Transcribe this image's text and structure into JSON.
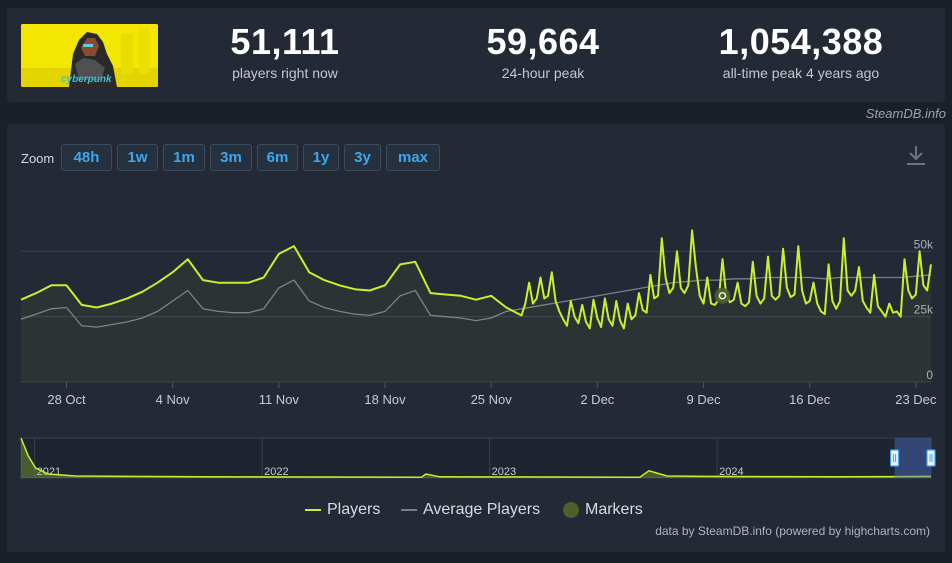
{
  "stats": [
    {
      "value": "51,111",
      "label": "players right now"
    },
    {
      "value": "59,664",
      "label": "24-hour peak"
    },
    {
      "value": "1,054,388",
      "label": "all-time peak 4 years ago"
    }
  ],
  "credit_top": "SteamDB.info",
  "zoom": {
    "label": "Zoom",
    "buttons": [
      "48h",
      "1w",
      "1m",
      "3m",
      "6m",
      "1y",
      "3y",
      "max"
    ]
  },
  "colors": {
    "players": "#c6f12c",
    "average": "#7b7f85",
    "markers": "#5a6b31",
    "accent": "#3aa7f0"
  },
  "icons": {
    "download": "download-icon",
    "game_image": "cyberpunk-2077-cover"
  },
  "chart_data": {
    "type": "line",
    "title": "",
    "xlabel": "",
    "ylabel": "",
    "x_ticks": [
      "28 Oct",
      "4 Nov",
      "11 Nov",
      "18 Nov",
      "25 Nov",
      "2 Dec",
      "9 Dec",
      "16 Dec",
      "23 Dec"
    ],
    "x_tick_days": [
      3,
      10,
      17,
      24,
      31,
      38,
      45,
      52,
      59
    ],
    "y_ticks": [
      0,
      25000,
      50000
    ],
    "y_tick_labels": [
      "0",
      "25k",
      "50k"
    ],
    "ylim": [
      0,
      75000
    ],
    "xlim_days": [
      0,
      60
    ],
    "grid": true,
    "legend_position": "bottom-center",
    "series": [
      {
        "name": "Players",
        "granularity": "daily until 22 Nov, then every 6 hours",
        "points": [
          [
            0,
            31500
          ],
          [
            1,
            34000
          ],
          [
            2,
            37000
          ],
          [
            3,
            37000
          ],
          [
            4,
            29500
          ],
          [
            5,
            28500
          ],
          [
            6,
            30000
          ],
          [
            7,
            32000
          ],
          [
            8,
            34500
          ],
          [
            9,
            38000
          ],
          [
            10,
            42000
          ],
          [
            11,
            47000
          ],
          [
            12,
            39000
          ],
          [
            13,
            38000
          ],
          [
            14,
            38000
          ],
          [
            15,
            38000
          ],
          [
            16,
            40000
          ],
          [
            17,
            49000
          ],
          [
            18,
            52000
          ],
          [
            19,
            42000
          ],
          [
            20,
            39000
          ],
          [
            21,
            37000
          ],
          [
            22,
            35500
          ],
          [
            23,
            35000
          ],
          [
            24,
            37000
          ],
          [
            25,
            45000
          ],
          [
            26,
            46000
          ],
          [
            27,
            34000
          ],
          [
            28,
            33500
          ],
          [
            29,
            33000
          ],
          [
            30,
            31500
          ],
          [
            31,
            33000
          ],
          [
            32,
            28500
          ],
          [
            33,
            25500
          ],
          [
            33.25,
            30000
          ],
          [
            33.5,
            38000
          ],
          [
            33.75,
            30000
          ],
          [
            34,
            32000
          ],
          [
            34.25,
            40000
          ],
          [
            34.5,
            32000
          ],
          [
            34.75,
            33000
          ],
          [
            35,
            42000
          ],
          [
            35.25,
            31000
          ],
          [
            35.5,
            27000
          ],
          [
            35.75,
            24000
          ],
          [
            36,
            21500
          ],
          [
            36.25,
            31000
          ],
          [
            36.5,
            25000
          ],
          [
            36.75,
            22500
          ],
          [
            37,
            29500
          ],
          [
            37.25,
            23000
          ],
          [
            37.5,
            20500
          ],
          [
            37.75,
            31500
          ],
          [
            38,
            24500
          ],
          [
            38.25,
            21000
          ],
          [
            38.5,
            32000
          ],
          [
            38.75,
            24000
          ],
          [
            39,
            21500
          ],
          [
            39.25,
            31000
          ],
          [
            39.5,
            23500
          ],
          [
            39.75,
            20500
          ],
          [
            40,
            30000
          ],
          [
            40.25,
            24000
          ],
          [
            40.5,
            25500
          ],
          [
            40.75,
            34000
          ],
          [
            41,
            27500
          ],
          [
            41.25,
            26500
          ],
          [
            41.5,
            41000
          ],
          [
            41.75,
            32000
          ],
          [
            42,
            33000
          ],
          [
            42.25,
            55000
          ],
          [
            42.5,
            40000
          ],
          [
            42.75,
            34000
          ],
          [
            43,
            36000
          ],
          [
            43.25,
            50000
          ],
          [
            43.5,
            36000
          ],
          [
            43.75,
            34000
          ],
          [
            44,
            37000
          ],
          [
            44.25,
            58000
          ],
          [
            44.5,
            44000
          ],
          [
            44.75,
            33000
          ],
          [
            45,
            30000
          ],
          [
            45.25,
            40000
          ],
          [
            45.5,
            30000
          ],
          [
            45.75,
            29500
          ],
          [
            46,
            31500
          ],
          [
            46.25,
            47000
          ],
          [
            46.5,
            33000
          ],
          [
            46.75,
            30500
          ],
          [
            47,
            31500
          ],
          [
            47.25,
            38000
          ],
          [
            47.5,
            30000
          ],
          [
            47.75,
            29000
          ],
          [
            48,
            30500
          ],
          [
            48.25,
            46000
          ],
          [
            48.5,
            33000
          ],
          [
            48.75,
            30000
          ],
          [
            49,
            32000
          ],
          [
            49.25,
            48000
          ],
          [
            49.5,
            33000
          ],
          [
            49.75,
            31500
          ],
          [
            50,
            33000
          ],
          [
            50.25,
            51000
          ],
          [
            50.5,
            36000
          ],
          [
            50.75,
            32500
          ],
          [
            51,
            33500
          ],
          [
            51.25,
            52000
          ],
          [
            51.5,
            35000
          ],
          [
            51.75,
            30000
          ],
          [
            52,
            31000
          ],
          [
            52.25,
            38000
          ],
          [
            52.5,
            30000
          ],
          [
            52.75,
            27000
          ],
          [
            53,
            26000
          ],
          [
            53.25,
            45000
          ],
          [
            53.5,
            31000
          ],
          [
            53.75,
            28000
          ],
          [
            54,
            31000
          ],
          [
            54.25,
            55000
          ],
          [
            54.5,
            35000
          ],
          [
            54.75,
            33000
          ],
          [
            55,
            35000
          ],
          [
            55.25,
            44000
          ],
          [
            55.5,
            31000
          ],
          [
            55.75,
            28500
          ],
          [
            56,
            26500
          ],
          [
            56.25,
            41000
          ],
          [
            56.5,
            29000
          ],
          [
            56.75,
            27000
          ],
          [
            57,
            25000
          ],
          [
            57.25,
            30000
          ],
          [
            57.5,
            26500
          ],
          [
            57.75,
            27000
          ],
          [
            58,
            25000
          ],
          [
            58.25,
            47000
          ],
          [
            58.5,
            35000
          ],
          [
            58.75,
            32000
          ],
          [
            59,
            33500
          ],
          [
            59.25,
            50000
          ],
          [
            59.5,
            37000
          ],
          [
            59.75,
            35000
          ],
          [
            60,
            45000
          ]
        ]
      },
      {
        "name": "Average Players",
        "points": [
          [
            0,
            24000
          ],
          [
            1,
            26000
          ],
          [
            2,
            28000
          ],
          [
            3,
            28500
          ],
          [
            4,
            21500
          ],
          [
            5,
            21000
          ],
          [
            6,
            22000
          ],
          [
            7,
            23000
          ],
          [
            8,
            24500
          ],
          [
            9,
            27000
          ],
          [
            10,
            31000
          ],
          [
            11,
            35000
          ],
          [
            12,
            28000
          ],
          [
            13,
            27000
          ],
          [
            14,
            26500
          ],
          [
            15,
            26500
          ],
          [
            16,
            28000
          ],
          [
            17,
            36000
          ],
          [
            18,
            39000
          ],
          [
            19,
            31000
          ],
          [
            20,
            28500
          ],
          [
            21,
            27000
          ],
          [
            22,
            26000
          ],
          [
            23,
            25500
          ],
          [
            24,
            27000
          ],
          [
            25,
            33000
          ],
          [
            26,
            35000
          ],
          [
            27,
            25500
          ],
          [
            28,
            25000
          ],
          [
            29,
            24500
          ],
          [
            30,
            23500
          ],
          [
            31,
            24500
          ],
          [
            32,
            27000
          ],
          [
            33,
            28000
          ],
          [
            34,
            29000
          ],
          [
            35,
            30000
          ],
          [
            36,
            31000
          ],
          [
            37,
            32000
          ],
          [
            38,
            33000
          ],
          [
            39,
            34000
          ],
          [
            40,
            35000
          ],
          [
            41,
            36000
          ],
          [
            42,
            37000
          ],
          [
            43,
            38000
          ],
          [
            44,
            38500
          ],
          [
            45,
            39000
          ],
          [
            46,
            39000
          ],
          [
            47,
            39500
          ],
          [
            48,
            39500
          ],
          [
            49,
            40000
          ],
          [
            50,
            40000
          ],
          [
            51,
            40000
          ],
          [
            52,
            40000
          ],
          [
            53,
            39500
          ],
          [
            54,
            40000
          ],
          [
            55,
            40000
          ],
          [
            56,
            40000
          ],
          [
            57,
            40000
          ],
          [
            58,
            40000
          ],
          [
            59,
            40500
          ],
          [
            60,
            41000
          ]
        ]
      },
      {
        "name": "Markers",
        "points": [
          [
            46.25,
            33000
          ]
        ]
      }
    ],
    "navigator": {
      "year_labels": [
        "2021",
        "2022",
        "2023",
        "2024"
      ],
      "year_positions": [
        0.015,
        0.265,
        0.515,
        0.765
      ],
      "selection_range": [
        0.96,
        1.0
      ],
      "history": [
        [
          0,
          1.0
        ],
        [
          0.008,
          0.55
        ],
        [
          0.016,
          0.25
        ],
        [
          0.03,
          0.1
        ],
        [
          0.06,
          0.05
        ],
        [
          0.2,
          0.03
        ],
        [
          0.44,
          0.02
        ],
        [
          0.445,
          0.1
        ],
        [
          0.46,
          0.03
        ],
        [
          0.68,
          0.02
        ],
        [
          0.69,
          0.18
        ],
        [
          0.71,
          0.05
        ],
        [
          0.75,
          0.04
        ],
        [
          0.9,
          0.03
        ],
        [
          1.0,
          0.04
        ]
      ]
    }
  },
  "legend": [
    {
      "label": "Players"
    },
    {
      "label": "Average Players"
    },
    {
      "label": "Markers"
    }
  ],
  "credit_bottom": "data by SteamDB.info (powered by highcharts.com)"
}
